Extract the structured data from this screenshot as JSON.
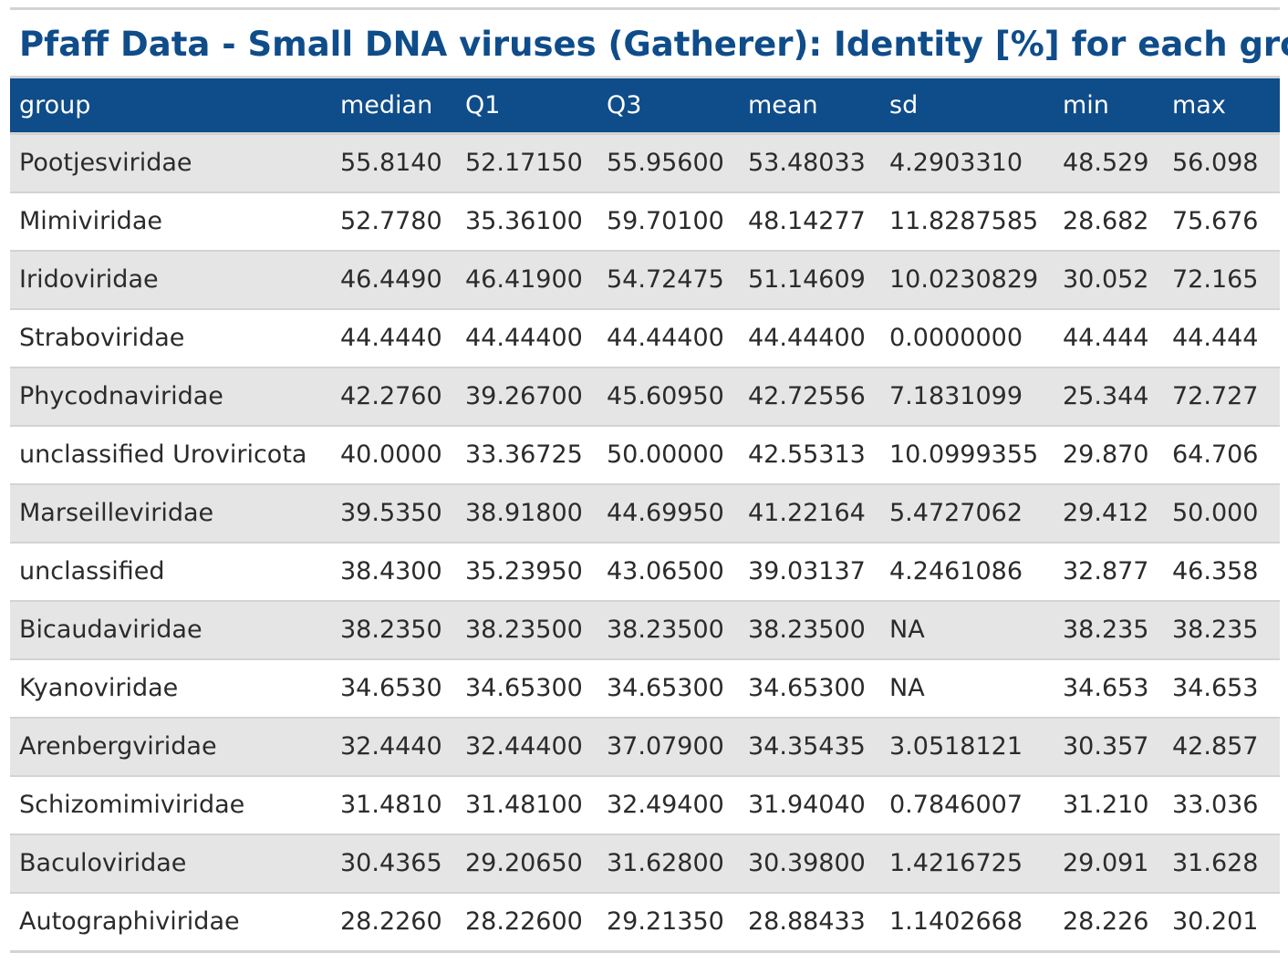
{
  "title": "Pfaff Data - Small DNA viruses (Gatherer): Identity [%] for each group",
  "colors": {
    "header_bg": "#0f4c8a",
    "title_text": "#0f4c8a",
    "stripe": "#e5e5e5"
  },
  "columns": [
    "group",
    "median",
    "Q1",
    "Q3",
    "mean",
    "sd",
    "min",
    "max"
  ],
  "rows": [
    [
      "Pootjesviridae",
      "55.8140",
      "52.17150",
      "55.95600",
      "53.48033",
      "4.2903310",
      "48.529",
      "56.098"
    ],
    [
      "Mimiviridae",
      "52.7780",
      "35.36100",
      "59.70100",
      "48.14277",
      "11.8287585",
      "28.682",
      "75.676"
    ],
    [
      "Iridoviridae",
      "46.4490",
      "46.41900",
      "54.72475",
      "51.14609",
      "10.0230829",
      "30.052",
      "72.165"
    ],
    [
      "Straboviridae",
      "44.4440",
      "44.44400",
      "44.44400",
      "44.44400",
      "0.0000000",
      "44.444",
      "44.444"
    ],
    [
      "Phycodnaviridae",
      "42.2760",
      "39.26700",
      "45.60950",
      "42.72556",
      "7.1831099",
      "25.344",
      "72.727"
    ],
    [
      "unclassified Uroviricota",
      "40.0000",
      "33.36725",
      "50.00000",
      "42.55313",
      "10.0999355",
      "29.870",
      "64.706"
    ],
    [
      "Marseilleviridae",
      "39.5350",
      "38.91800",
      "44.69950",
      "41.22164",
      "5.4727062",
      "29.412",
      "50.000"
    ],
    [
      "unclassified",
      "38.4300",
      "35.23950",
      "43.06500",
      "39.03137",
      "4.2461086",
      "32.877",
      "46.358"
    ],
    [
      "Bicaudaviridae",
      "38.2350",
      "38.23500",
      "38.23500",
      "38.23500",
      "NA",
      "38.235",
      "38.235"
    ],
    [
      "Kyanoviridae",
      "34.6530",
      "34.65300",
      "34.65300",
      "34.65300",
      "NA",
      "34.653",
      "34.653"
    ],
    [
      "Arenbergviridae",
      "32.4440",
      "32.44400",
      "37.07900",
      "34.35435",
      "3.0518121",
      "30.357",
      "42.857"
    ],
    [
      "Schizomimiviridae",
      "31.4810",
      "31.48100",
      "32.49400",
      "31.94040",
      "0.7846007",
      "31.210",
      "33.036"
    ],
    [
      "Baculoviridae",
      "30.4365",
      "29.20650",
      "31.62800",
      "30.39800",
      "1.4216725",
      "29.091",
      "31.628"
    ],
    [
      "Autographiviridae",
      "28.2260",
      "28.22600",
      "29.21350",
      "28.88433",
      "1.1402668",
      "28.226",
      "30.201"
    ]
  ]
}
